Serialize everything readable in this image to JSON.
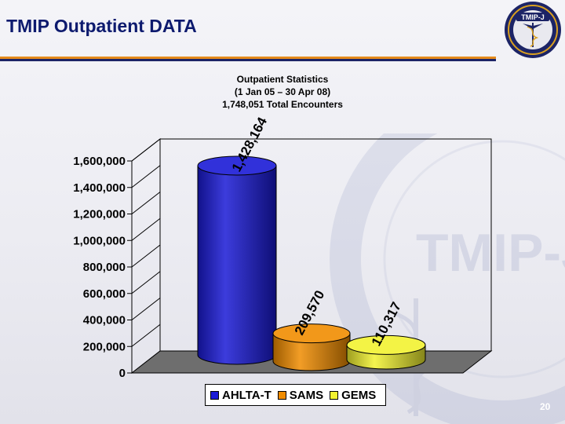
{
  "slide": {
    "title": "TMIP Outpatient DATA",
    "page_number": "20",
    "logo_text": "TMIP-J",
    "watermark_text": "TMIP-J"
  },
  "colors": {
    "title": "#0d1a6e",
    "rule_orange": "#e58a1b",
    "rule_navy": "#1c2466",
    "ahlta": "#1a1ad6",
    "sams": "#f08c00",
    "gems": "#f2f230"
  },
  "chart_data": {
    "type": "bar",
    "title_lines": [
      "Outpatient Statistics",
      "(1 Jan 05 – 30 Apr 08)",
      "1,748,051 Total Encounters"
    ],
    "series": [
      {
        "name": "AHLTA-T",
        "value": 1428164,
        "label": "1,428,164",
        "color": "#1a1ad6"
      },
      {
        "name": "SAMS",
        "value": 209570,
        "label": "209,570",
        "color": "#f08c00"
      },
      {
        "name": "GEMS",
        "value": 110317,
        "label": "110,317",
        "color": "#f2f230"
      }
    ],
    "y_ticks": [
      "0",
      "200,000",
      "400,000",
      "600,000",
      "800,000",
      "1,000,000",
      "1,200,000",
      "1,400,000",
      "1,600,000"
    ],
    "ylim": [
      0,
      1600000
    ],
    "style": "3d-cylinder",
    "legend_position": "bottom"
  }
}
